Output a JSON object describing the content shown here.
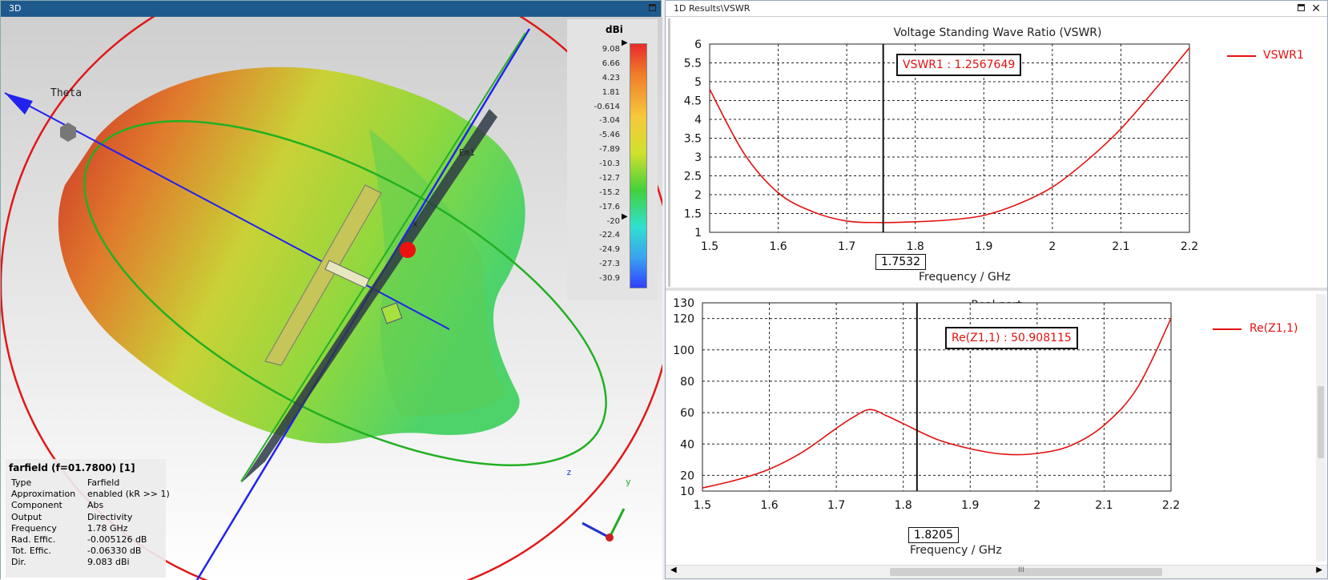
{
  "window3d": {
    "title": "3D",
    "theta_label": "Theta",
    "port_label": "Em1",
    "axis_x": "x",
    "axis_y": "y",
    "axis_z": "z",
    "legend": {
      "unit": "dBi",
      "values": [
        "9.08",
        "6.66",
        "4.23",
        "1.81",
        "-0.614",
        "-3.04",
        "-5.46",
        "-7.89",
        "-10.3",
        "-12.7",
        "-15.2",
        "-17.6",
        "-20",
        "-22.4",
        "-24.9",
        "-27.3",
        "-30.9"
      ]
    },
    "info": {
      "title": "farfield (f=01.7800) [1]",
      "rows": [
        {
          "k": "Type",
          "v": "Farfield"
        },
        {
          "k": "Approximation",
          "v": "enabled (kR >> 1)"
        },
        {
          "k": "Component",
          "v": "Abs"
        },
        {
          "k": "Output",
          "v": "Directivity"
        },
        {
          "k": "Frequency",
          "v": "1.78 GHz"
        },
        {
          "k": "Rad. Effic.",
          "v": "-0.005126 dB"
        },
        {
          "k": "Tot. Effic.",
          "v": "-0.06330 dB"
        },
        {
          "k": "Dir.",
          "v": "9.083 dBi"
        }
      ]
    }
  },
  "results": {
    "title": "1D Results\\VSWR",
    "scroll_grip": "III",
    "plots": [
      {
        "title": "Voltage Standing Wave Ratio (VSWR)",
        "xlabel": "Frequency / GHz",
        "legend": "VSWR1",
        "marker_text": "VSWR1 : 1.2567649",
        "cursor_x_label": "1.7532",
        "x_ticks": [
          "1.5",
          "1.6",
          "1.7",
          "1.8",
          "1.9",
          "2",
          "2.1",
          "2.2"
        ],
        "y_ticks": [
          "1",
          "1.5",
          "2",
          "2.5",
          "3",
          "3.5",
          "4",
          "4.5",
          "5",
          "5.5",
          "6"
        ]
      },
      {
        "title": "Real part",
        "xlabel": "Frequency / GHz",
        "legend": "Re(Z1,1)",
        "marker_text": "Re(Z1,1) : 50.908115",
        "cursor_x_label": "1.8205",
        "x_ticks": [
          "1.5",
          "1.6",
          "1.7",
          "1.8",
          "1.9",
          "2",
          "2.1",
          "2.2"
        ],
        "y_ticks": [
          "10",
          "20",
          "40",
          "60",
          "80",
          "100",
          "120",
          "130"
        ]
      }
    ]
  },
  "chart_data": [
    {
      "type": "line",
      "title": "Voltage Standing Wave Ratio (VSWR)",
      "xlabel": "Frequency / GHz",
      "ylabel": "",
      "xlim": [
        1.5,
        2.2
      ],
      "ylim": [
        1,
        6
      ],
      "grid": true,
      "legend_position": "right",
      "cursor_x": 1.7532,
      "series": [
        {
          "name": "VSWR1",
          "color": "#e31010",
          "x": [
            1.5,
            1.55,
            1.6,
            1.65,
            1.7,
            1.75,
            1.8,
            1.85,
            1.9,
            1.95,
            2.0,
            2.05,
            2.1,
            2.15,
            2.2
          ],
          "values": [
            4.8,
            3.1,
            2.05,
            1.55,
            1.3,
            1.26,
            1.28,
            1.33,
            1.45,
            1.75,
            2.2,
            2.9,
            3.75,
            4.8,
            5.9
          ]
        }
      ]
    },
    {
      "type": "line",
      "title": "Real part",
      "xlabel": "Frequency / GHz",
      "ylabel": "",
      "xlim": [
        1.5,
        2.2
      ],
      "ylim": [
        10,
        130
      ],
      "grid": true,
      "legend_position": "right",
      "cursor_x": 1.8205,
      "series": [
        {
          "name": "Re(Z1,1)",
          "color": "#e31010",
          "x": [
            1.5,
            1.55,
            1.6,
            1.65,
            1.7,
            1.725,
            1.75,
            1.775,
            1.8,
            1.85,
            1.9,
            1.95,
            2.0,
            2.05,
            2.1,
            2.15,
            2.2
          ],
          "values": [
            12,
            17,
            24,
            35,
            50,
            57,
            62,
            58,
            53,
            43,
            37,
            33.5,
            34,
            39,
            52,
            76,
            120
          ]
        }
      ]
    }
  ]
}
